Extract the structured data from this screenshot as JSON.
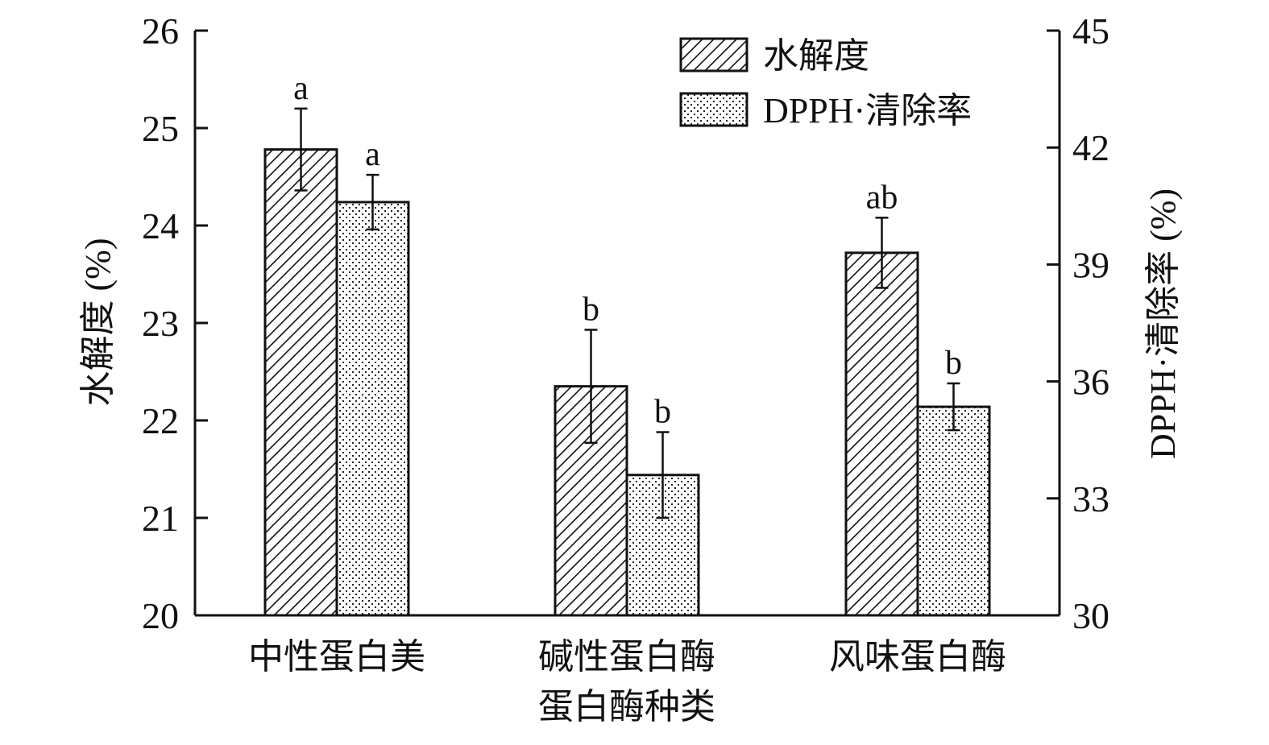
{
  "chart_data": {
    "type": "bar",
    "xlabel": "蛋白酶种类",
    "categories": [
      "中性蛋白美",
      "碱性蛋白酶",
      "风味蛋白酶"
    ],
    "y_left": {
      "label": "水解度 (%)",
      "lim": [
        20,
        26
      ],
      "ticks": [
        "20",
        "21",
        "22",
        "23",
        "24",
        "25",
        "26"
      ]
    },
    "y_right": {
      "label": "DPPH·清除率 (%)",
      "lim": [
        30,
        45
      ],
      "ticks": [
        "30",
        "33",
        "36",
        "39",
        "42",
        "45"
      ]
    },
    "series": [
      {
        "name": "水解度",
        "axis": "left",
        "pattern": "hatch",
        "values": [
          24.78,
          22.35,
          23.72
        ],
        "errors": [
          0.42,
          0.58,
          0.36
        ],
        "labels": [
          "a",
          "b",
          "ab"
        ]
      },
      {
        "name": "DPPH·清除率",
        "axis": "right",
        "pattern": "dots",
        "values": [
          40.6,
          33.6,
          35.35
        ],
        "errors": [
          0.7,
          1.1,
          0.6
        ],
        "labels": [
          "a",
          "b",
          "b"
        ]
      }
    ],
    "legend_position": "top-right",
    "grid": false
  }
}
